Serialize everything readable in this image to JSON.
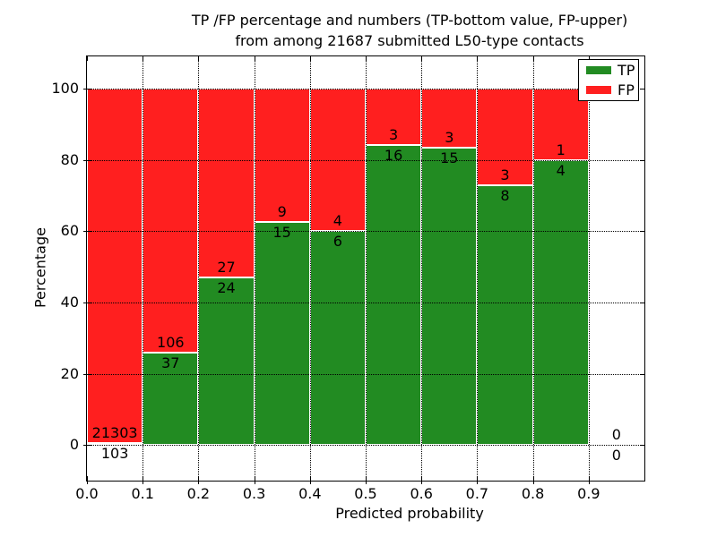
{
  "title": {
    "line1": "TP /FP percentage and numbers (TP-bottom value, FP-upper)",
    "line2": "from among 21687 submitted L50-type contacts"
  },
  "axes": {
    "xlabel": "Predicted probability",
    "ylabel": "Percentage"
  },
  "legend": {
    "position": "upper right",
    "items": [
      {
        "label": "TP",
        "color": "#228B22"
      },
      {
        "label": "FP",
        "color": "#FF1F1F"
      }
    ]
  },
  "chart_data": {
    "type": "bar",
    "stacked": true,
    "title": "TP /FP percentage and numbers (TP-bottom value, FP-upper) from among 21687 submitted L50-type contacts",
    "xlabel": "Predicted probability",
    "ylabel": "Percentage",
    "total_submitted_contacts": 21687,
    "annotation_rule": "FP count printed above the TP/FP boundary, TP count printed below it",
    "bins": [
      "0.0-0.1",
      "0.1-0.2",
      "0.2-0.3",
      "0.3-0.4",
      "0.4-0.5",
      "0.5-0.6",
      "0.6-0.7",
      "0.7-0.8",
      "0.8-0.9",
      "0.9-1.0"
    ],
    "bin_starts": [
      0.0,
      0.1,
      0.2,
      0.3,
      0.4,
      0.5,
      0.6,
      0.7,
      0.8,
      0.9
    ],
    "bin_width": 0.1,
    "series": [
      {
        "name": "TP",
        "color": "#228B22",
        "counts": [
          103,
          37,
          24,
          15,
          6,
          16,
          15,
          8,
          4,
          0
        ],
        "percents": [
          0.48,
          25.87,
          47.06,
          62.5,
          60.0,
          84.21,
          83.33,
          72.73,
          80.0,
          0.0
        ]
      },
      {
        "name": "FP",
        "color": "#FF1F1F",
        "counts": [
          21303,
          106,
          27,
          9,
          4,
          3,
          3,
          3,
          1,
          0
        ],
        "percents": [
          99.52,
          74.13,
          52.94,
          37.5,
          40.0,
          15.79,
          16.67,
          27.27,
          20.0,
          0.0
        ]
      }
    ],
    "xlim": [
      0.0,
      1.0
    ],
    "ylim": [
      -10,
      109
    ],
    "xticks": [
      0.0,
      0.1,
      0.2,
      0.3,
      0.4,
      0.5,
      0.6,
      0.7,
      0.8,
      0.9
    ],
    "xtick_labels": [
      "0.0",
      "0.1",
      "0.2",
      "0.3",
      "0.4",
      "0.5",
      "0.6",
      "0.7",
      "0.8",
      "0.9"
    ],
    "yticks": [
      0,
      20,
      40,
      60,
      80,
      100
    ],
    "ytick_labels": [
      "0",
      "20",
      "40",
      "60",
      "80",
      "100"
    ],
    "grid": "dotted",
    "legend_position": "upper right"
  }
}
